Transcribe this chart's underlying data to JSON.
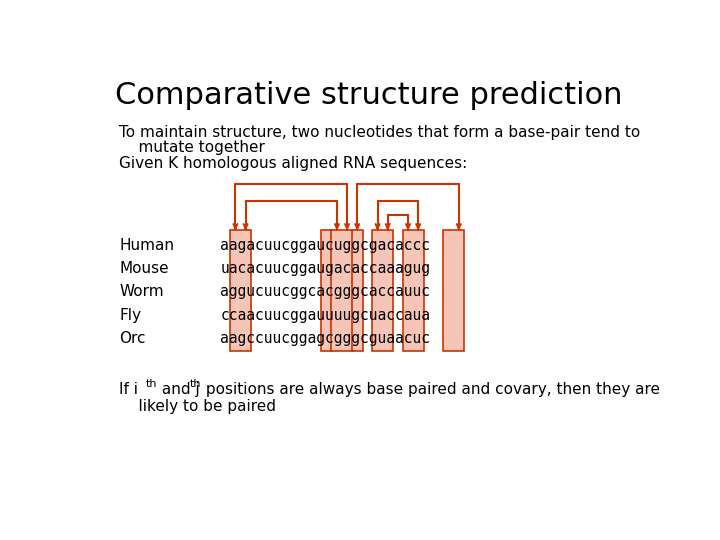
{
  "title": "Comparative structure prediction",
  "subtitle1": "To maintain structure, two nucleotides that form a base-pair tend to",
  "subtitle2": "    mutate together",
  "subtitle3": "Given K homologous aligned RNA sequences:",
  "species": [
    "Human",
    "Mouse",
    "Worm",
    "Fly",
    "Orc"
  ],
  "sequences": [
    "aagacuucggaucuggcgacaccc",
    "uacacuucggaugacaccaaagug",
    "aggucuucggcacgggcaccauuc",
    "ccaacuucggauuuugcuaccaua",
    "aagccuucggagcgggcguaacuc"
  ],
  "highlight_color": "#f5c6b8",
  "bracket_color": "#cc3300",
  "text_color": "#000000",
  "bg_color": "#ffffff",
  "title_fontsize": 22,
  "body_fontsize": 11,
  "mono_fontsize": 10.5
}
